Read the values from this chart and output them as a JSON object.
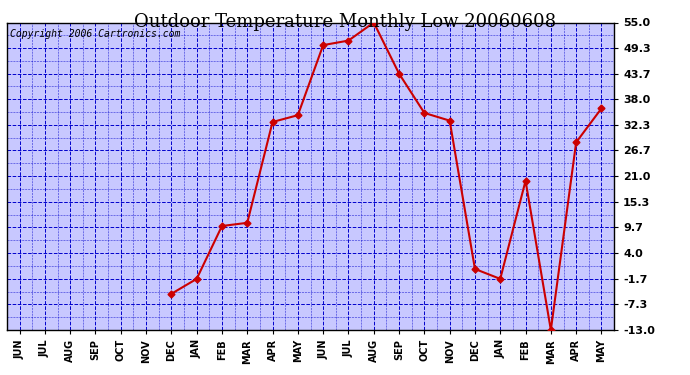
{
  "title": "Outdoor Temperature Monthly Low 20060608",
  "copyright": "Copyright 2006 Cartronics.com",
  "x_labels": [
    "JUN",
    "JUL",
    "AUG",
    "SEP",
    "OCT",
    "NOV",
    "DEC",
    "JAN",
    "FEB",
    "MAR",
    "APR",
    "MAY",
    "JUN",
    "JUL",
    "AUG",
    "SEP",
    "OCT",
    "NOV",
    "DEC",
    "JAN",
    "FEB",
    "MAR",
    "APR",
    "MAY"
  ],
  "x_data": [
    6,
    7,
    8,
    9,
    10,
    11,
    12,
    13,
    14,
    15,
    16,
    17,
    18,
    19,
    20,
    21,
    22,
    23
  ],
  "y_data": [
    -5.0,
    -1.7,
    10.0,
    10.7,
    33.0,
    34.5,
    50.0,
    51.0,
    55.0,
    43.7,
    35.0,
    33.3,
    0.5,
    -1.7,
    20.0,
    -13.0,
    28.5,
    36.0
  ],
  "y_ticks": [
    55.0,
    49.3,
    43.7,
    38.0,
    32.3,
    26.7,
    21.0,
    15.3,
    9.7,
    4.0,
    -1.7,
    -7.3,
    -13.0
  ],
  "bg_color": "#c8c8ff",
  "line_color": "#cc0000",
  "grid_color_major": "#0000cc",
  "grid_color_minor": "#0000cc",
  "title_fontsize": 13,
  "copyright_fontsize": 7,
  "tick_fontsize": 8,
  "xlabel_fontsize": 7
}
